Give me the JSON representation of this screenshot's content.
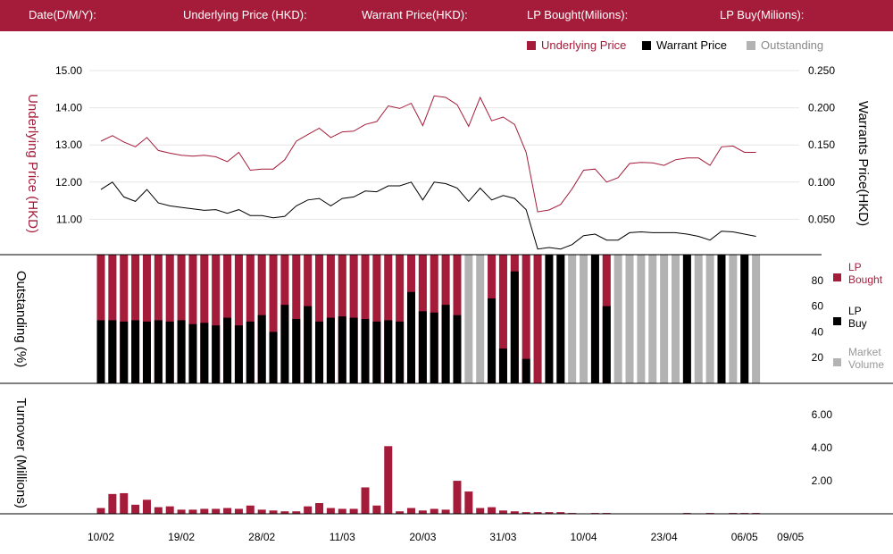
{
  "header": {
    "date_label": "Date(D/M/Y):",
    "underlying_label": "Underlying Price (HKD):",
    "warrant_label": "Warrant  Price(HKD):",
    "lp_bought_label": "LP Bought(Milions):",
    "lp_buy_label": "LP Buy(Milions):"
  },
  "legend_top": [
    {
      "label": "Underlying Price",
      "color": "#a41c3a"
    },
    {
      "label": "Warrant  Price",
      "color": "#000000"
    },
    {
      "label": "Outstanding",
      "color": "#b3b3b3"
    }
  ],
  "legend_mid": [
    {
      "label": [
        "LP",
        "Bought"
      ],
      "color": "#a41c3a"
    },
    {
      "label": [
        "LP",
        "Buy"
      ],
      "color": "#000000"
    },
    {
      "label": [
        "Market",
        "Volume"
      ],
      "color": "#b3b3b3"
    }
  ],
  "colors": {
    "brand": "#a41c3a",
    "black": "#000000",
    "gray": "#b3b3b3"
  },
  "chart_data": [
    {
      "type": "line",
      "ylabel_left": "Underlying Price (HKD)",
      "ylabel_right": "Warrants  Price(HKD)",
      "yticks_left": [
        "15.00",
        "14.00",
        "13.00",
        "12.00",
        "11.00"
      ],
      "yticks_right": [
        "0.250",
        "0.200",
        "0.150",
        "0.100",
        "0.050"
      ],
      "ylim_left": [
        10.0,
        15.0
      ],
      "ylim_right": [
        0.0,
        0.25
      ],
      "series": [
        {
          "name": "Underlying Price",
          "axis": "left",
          "color": "#a41c3a",
          "values": [
            13.1,
            13.25,
            13.08,
            12.95,
            13.2,
            12.85,
            12.78,
            12.72,
            12.7,
            12.72,
            12.68,
            12.55,
            12.8,
            12.32,
            12.35,
            12.35,
            12.6,
            13.1,
            13.28,
            13.45,
            13.2,
            13.35,
            13.37,
            13.55,
            13.63,
            14.05,
            13.98,
            14.12,
            13.52,
            14.32,
            14.28,
            14.08,
            13.5,
            14.28,
            13.65,
            13.75,
            13.55,
            12.8,
            11.2,
            11.25,
            11.4,
            11.82,
            12.32,
            12.35,
            12.0,
            12.12,
            12.5,
            12.53,
            12.52,
            12.45,
            12.6,
            12.65,
            12.65,
            12.45,
            12.95,
            12.97,
            12.8,
            12.8
          ]
        },
        {
          "name": "Warrant  Price",
          "axis": "right",
          "color": "#000000",
          "values": [
            0.09,
            0.1,
            0.08,
            0.074,
            0.09,
            0.072,
            0.068,
            0.066,
            0.064,
            0.062,
            0.063,
            0.058,
            0.063,
            0.055,
            0.055,
            0.052,
            0.054,
            0.068,
            0.076,
            0.078,
            0.068,
            0.078,
            0.08,
            0.088,
            0.087,
            0.095,
            0.095,
            0.1,
            0.076,
            0.1,
            0.098,
            0.092,
            0.074,
            0.092,
            0.076,
            0.082,
            0.078,
            0.063,
            0.01,
            0.012,
            0.01,
            0.016,
            0.028,
            0.03,
            0.022,
            0.022,
            0.032,
            0.033,
            0.032,
            0.032,
            0.032,
            0.03,
            0.027,
            0.022,
            0.034,
            0.033,
            0.03,
            0.027
          ]
        }
      ]
    },
    {
      "type": "bar",
      "ylabel": "Outstanding (%)",
      "yticks": [
        "80",
        "60",
        "40",
        "20"
      ],
      "ylim": [
        0,
        100
      ],
      "series": [
        {
          "name": "LP Bought",
          "color": "#a41c3a",
          "values": [
            100,
            100,
            100,
            100,
            100,
            100,
            100,
            100,
            100,
            100,
            100,
            100,
            100,
            100,
            100,
            100,
            100,
            100,
            100,
            100,
            100,
            100,
            100,
            100,
            100,
            100,
            100,
            100,
            100,
            100,
            100,
            100,
            0,
            0,
            100,
            100,
            100,
            100,
            100,
            0,
            0,
            0,
            0,
            0,
            100,
            0,
            0,
            0,
            0,
            0,
            0,
            0,
            0,
            0,
            0,
            0,
            0,
            0
          ]
        },
        {
          "name": "LP Buy",
          "color": "#000000",
          "values": [
            49,
            49,
            48,
            49,
            48,
            49,
            48,
            49,
            46,
            47,
            45,
            51,
            45,
            48,
            53,
            40,
            61,
            50,
            60,
            48,
            51,
            52,
            51,
            50,
            48,
            49,
            48,
            71,
            56,
            55,
            61,
            53,
            0,
            0,
            66,
            27,
            87,
            19,
            0,
            100,
            100,
            0,
            0,
            100,
            60,
            0,
            0,
            0,
            0,
            0,
            0,
            100,
            0,
            0,
            100,
            0,
            100,
            0
          ]
        },
        {
          "name": "Market Volume",
          "color": "#b3b3b3",
          "values": [
            100,
            100,
            100,
            100,
            100,
            100,
            100,
            100,
            100,
            100,
            100,
            100,
            100,
            100,
            100,
            100,
            100,
            100,
            100,
            100,
            100,
            100,
            100,
            100,
            100,
            100,
            100,
            100,
            100,
            100,
            100,
            100,
            100,
            100,
            100,
            100,
            100,
            100,
            100,
            100,
            100,
            100,
            100,
            100,
            100,
            100,
            100,
            100,
            100,
            100,
            100,
            100,
            100,
            100,
            100,
            100,
            100,
            100
          ]
        }
      ]
    },
    {
      "type": "bar",
      "ylabel": "Turnover (Millions)",
      "yticks": [
        "6.00",
        "4.00",
        "2.00"
      ],
      "ylim": [
        0,
        6.5
      ],
      "series": [
        {
          "name": "Turnover",
          "color": "#a41c3a",
          "values": [
            0.35,
            1.2,
            1.25,
            0.55,
            0.85,
            0.4,
            0.45,
            0.25,
            0.25,
            0.3,
            0.3,
            0.35,
            0.3,
            0.5,
            0.25,
            0.2,
            0.15,
            0.15,
            0.45,
            0.65,
            0.35,
            0.3,
            0.3,
            1.6,
            0.5,
            4.1,
            0.15,
            0.35,
            0.2,
            0.3,
            0.25,
            2.0,
            1.35,
            0.35,
            0.4,
            0.2,
            0.15,
            0.1,
            0.1,
            0.1,
            0.1,
            0.05,
            0,
            0.05,
            0.05,
            0,
            0,
            0,
            0,
            0,
            0,
            0.05,
            0,
            0.05,
            0,
            0.05,
            0.05,
            0.05
          ]
        }
      ]
    }
  ],
  "x_ticks": [
    "10/02",
    "19/02",
    "28/02",
    "11/03",
    "20/03",
    "31/03",
    "10/04",
    "23/04",
    "06/05",
    "09/05"
  ],
  "x_tick_index": [
    0,
    7,
    14,
    21,
    28,
    35,
    42,
    49,
    56,
    60
  ]
}
